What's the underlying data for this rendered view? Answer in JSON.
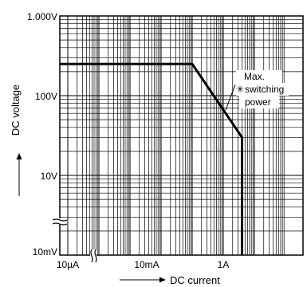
{
  "chart_data": {
    "type": "line",
    "xlabel": "DC current",
    "ylabel": "DC voltage",
    "x_scale": "log",
    "y_scale": "log",
    "x_ticks": [
      "10µA",
      "10mA",
      "1A"
    ],
    "y_ticks": [
      "1.000V",
      "100V",
      "10V",
      "10mV"
    ],
    "x_axis_break": true,
    "y_axis_break": true,
    "grid": true,
    "series": [
      {
        "name": "",
        "points": [
          {
            "x": "10µA",
            "y": "250V"
          },
          {
            "x": "100mA",
            "y": "250V"
          },
          {
            "x": "4A",
            "y": "30V"
          },
          {
            "x": "4A",
            "y": "10mV"
          }
        ]
      }
    ],
    "annotation": {
      "symbol": "✳",
      "lines": [
        "Max.",
        "switching",
        "power"
      ]
    }
  }
}
